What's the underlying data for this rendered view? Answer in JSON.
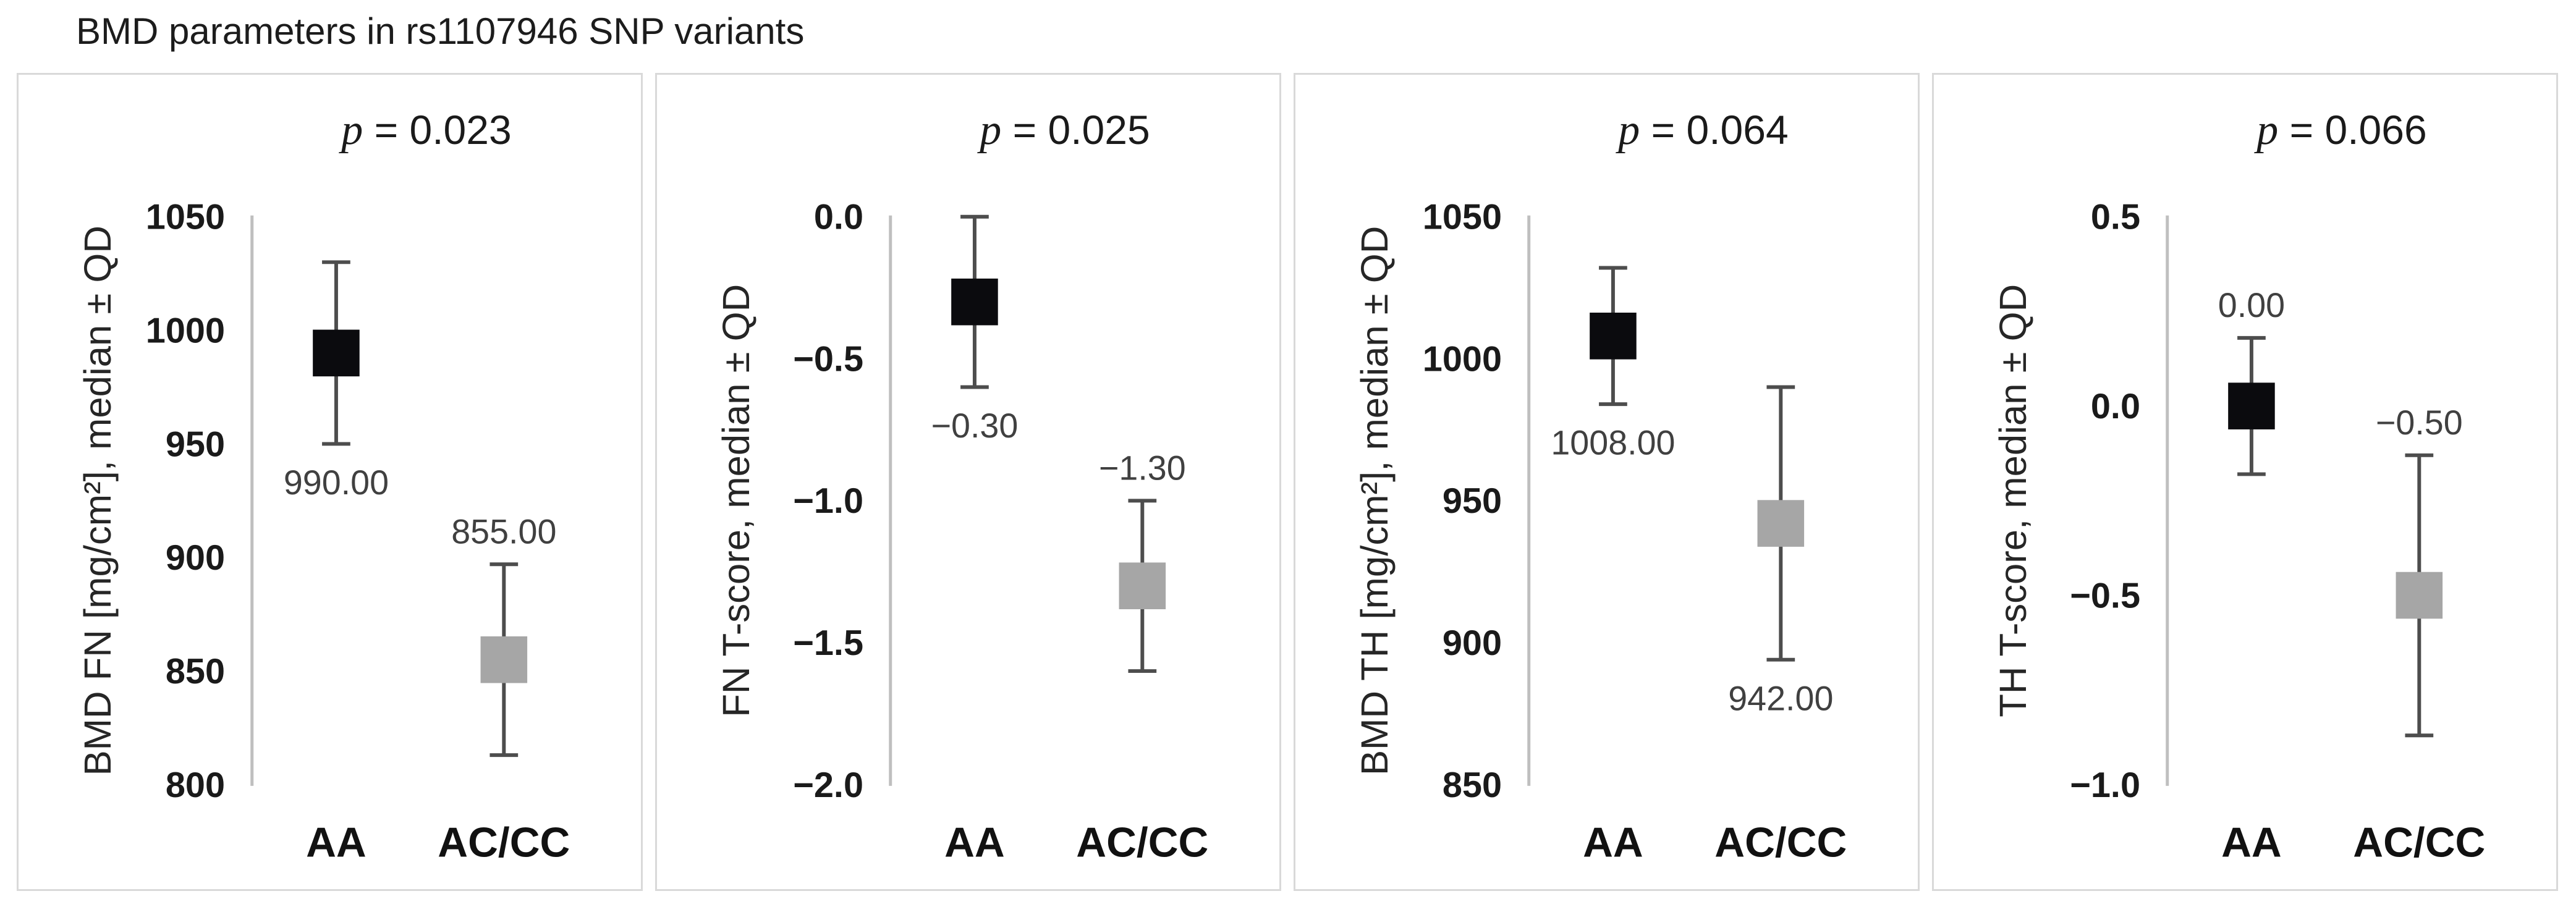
{
  "page": {
    "title": "BMD parameters in rs1107946 SNP variants"
  },
  "colors": {
    "axis_line": "#bfbfbf",
    "whisker": "#4d4d4d",
    "marker_black": "#0b0b0e",
    "marker_gray": "#a6a6a6",
    "tick_text": "#1a1a1a",
    "value_label_text": "#404040",
    "panel_border": "#d9d9d9"
  },
  "chart_data": [
    {
      "type": "errorbar",
      "p_symbol": "p",
      "p_equals": " = 0.023",
      "ylabel": "BMD FN [mg/cm²], median ± QD",
      "ylim": [
        800,
        1050
      ],
      "grid": false,
      "yticks": [
        {
          "value": 1050,
          "label": "1050"
        },
        {
          "value": 1000,
          "label": "1000"
        },
        {
          "value": 950,
          "label": "950"
        },
        {
          "value": 900,
          "label": "900"
        },
        {
          "value": 850,
          "label": "850"
        },
        {
          "value": 800,
          "label": "800"
        }
      ],
      "categories": [
        "AA",
        "AC/CC"
      ],
      "series": [
        {
          "group": "AA",
          "median": 990,
          "label": "990.00",
          "label_position": "below",
          "whisker_low": 950,
          "whisker_high": 1030,
          "marker_color": "#0b0b0e"
        },
        {
          "group": "AC/CC",
          "median": 855,
          "label": "855.00",
          "label_position": "above",
          "whisker_low": 813,
          "whisker_high": 897,
          "marker_color": "#a6a6a6"
        }
      ]
    },
    {
      "type": "errorbar",
      "p_symbol": "p",
      "p_equals": " = 0.025",
      "ylabel": "FN T-score, median ± QD",
      "ylim": [
        -2.0,
        0.0
      ],
      "grid": false,
      "yticks": [
        {
          "value": 0.0,
          "label": "0.0"
        },
        {
          "value": -0.5,
          "label": "−0.5"
        },
        {
          "value": -1.0,
          "label": "−1.0"
        },
        {
          "value": -1.5,
          "label": "−1.5"
        },
        {
          "value": -2.0,
          "label": "−2.0"
        }
      ],
      "categories": [
        "AA",
        "AC/CC"
      ],
      "series": [
        {
          "group": "AA",
          "median": -0.3,
          "label": "−0.30",
          "label_position": "below",
          "whisker_low": -0.6,
          "whisker_high": 0.0,
          "marker_color": "#0b0b0e"
        },
        {
          "group": "AC/CC",
          "median": -1.3,
          "label": "−1.30",
          "label_position": "above",
          "whisker_low": -1.6,
          "whisker_high": -1.0,
          "marker_color": "#a6a6a6"
        }
      ]
    },
    {
      "type": "errorbar",
      "p_symbol": "p",
      "p_equals": " = 0.064",
      "ylabel": "BMD TH [mg/cm²], median ± QD",
      "ylim": [
        850,
        1050
      ],
      "grid": false,
      "yticks": [
        {
          "value": 1050,
          "label": "1050"
        },
        {
          "value": 1000,
          "label": "1000"
        },
        {
          "value": 950,
          "label": "950"
        },
        {
          "value": 900,
          "label": "900"
        },
        {
          "value": 850,
          "label": "850"
        }
      ],
      "categories": [
        "AA",
        "AC/CC"
      ],
      "series": [
        {
          "group": "AA",
          "median": 1008,
          "label": "1008.00",
          "label_position": "below",
          "whisker_low": 984,
          "whisker_high": 1032,
          "marker_color": "#0b0b0e"
        },
        {
          "group": "AC/CC",
          "median": 942,
          "label": "942.00",
          "label_position": "below",
          "whisker_low": 894,
          "whisker_high": 990,
          "marker_color": "#a6a6a6"
        }
      ]
    },
    {
      "type": "errorbar",
      "p_symbol": "p",
      "p_equals": " = 0.066",
      "ylabel": "TH T-score, median ± QD",
      "ylim": [
        -1.0,
        0.5
      ],
      "grid": false,
      "yticks": [
        {
          "value": 0.5,
          "label": "0.5"
        },
        {
          "value": 0.0,
          "label": "0.0"
        },
        {
          "value": -0.5,
          "label": "−0.5"
        },
        {
          "value": -1.0,
          "label": "−1.0"
        }
      ],
      "categories": [
        "AA",
        "AC/CC"
      ],
      "series": [
        {
          "group": "AA",
          "median": 0.0,
          "label": "0.00",
          "label_position": "above",
          "whisker_low": -0.18,
          "whisker_high": 0.18,
          "marker_color": "#0b0b0e"
        },
        {
          "group": "AC/CC",
          "median": -0.5,
          "label": "−0.50",
          "label_position": "above",
          "whisker_low": -0.87,
          "whisker_high": -0.13,
          "marker_color": "#a6a6a6"
        }
      ]
    }
  ]
}
